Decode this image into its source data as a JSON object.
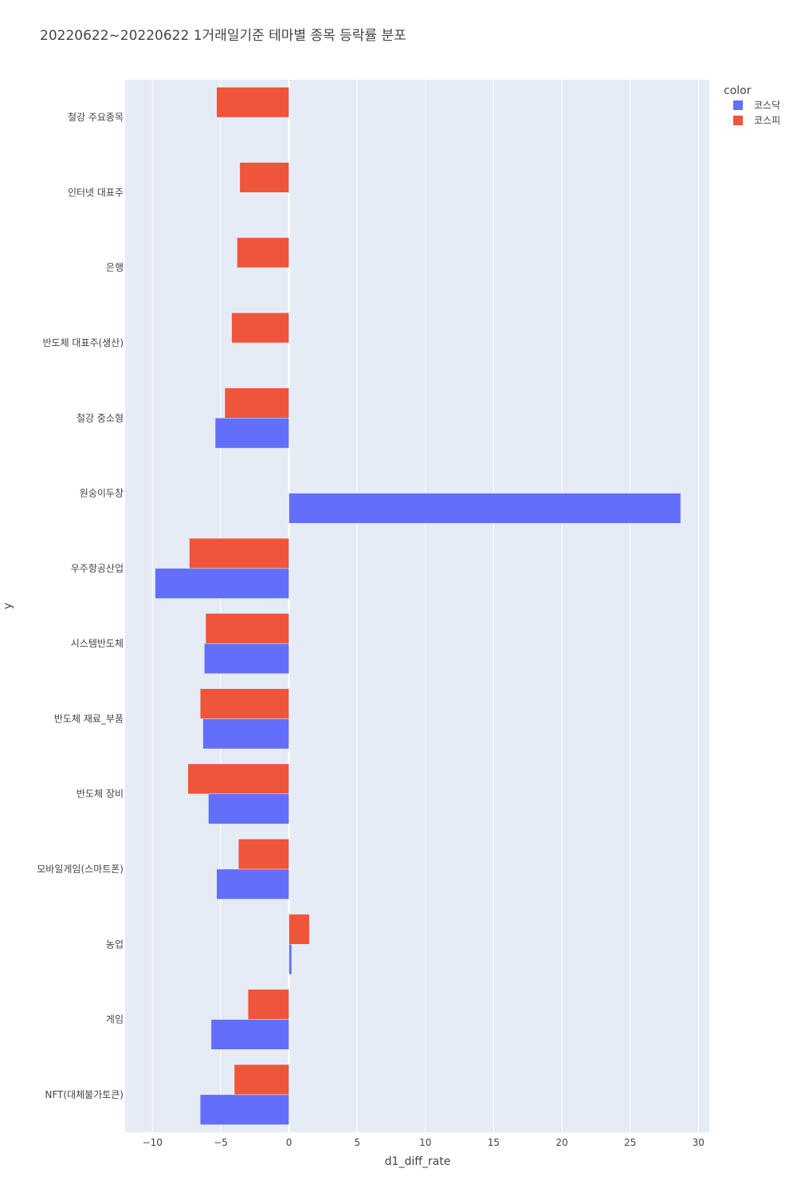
{
  "chart_data": {
    "type": "bar",
    "orientation": "horizontal",
    "barmode": "group",
    "title": "20220622~20220622 1거래일기준 테마별 종목 등락률 분포",
    "xlabel": "d1_diff_rate",
    "ylabel": "y",
    "xlim": [
      -12,
      30.8
    ],
    "xticks": [
      -10,
      -5,
      0,
      5,
      10,
      15,
      20,
      25,
      30
    ],
    "xtick_labels": [
      "−10",
      "−5",
      "0",
      "5",
      "10",
      "15",
      "20",
      "25",
      "30"
    ],
    "grid": true,
    "legend": {
      "title": "color",
      "placement": "top-right"
    },
    "categories": [
      "철강 주요종목",
      "인터넷 대표주",
      "은행",
      "반도체 대표주(생산)",
      "철강 중소형",
      "원숭이두창",
      "우주항공산업",
      "시스템반도체",
      "반도체 재료_부품",
      "반도체 장비",
      "모바일게임(스마트폰)",
      "농업",
      "게임",
      "NFT(대체불가토큰)"
    ],
    "series": [
      {
        "name": "코스닥",
        "color": "#636efa",
        "values": [
          null,
          null,
          null,
          null,
          -5.4,
          28.7,
          -9.8,
          -6.2,
          -6.3,
          -5.9,
          -5.3,
          0.2,
          -5.7,
          -6.5
        ]
      },
      {
        "name": "코스피",
        "color": "#ef553b",
        "values": [
          -5.3,
          -3.6,
          -3.8,
          -4.2,
          -4.7,
          null,
          -7.3,
          -6.1,
          -6.5,
          -7.4,
          -3.7,
          1.5,
          -3.0,
          -4.0
        ]
      }
    ]
  }
}
